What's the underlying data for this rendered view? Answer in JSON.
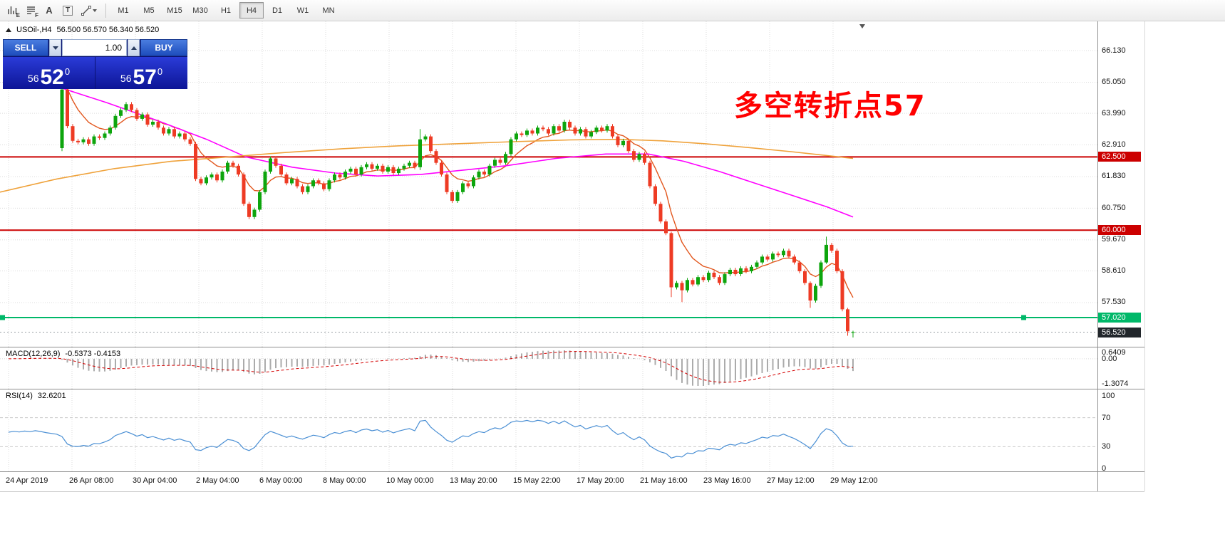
{
  "toolbar": {
    "icons": [
      {
        "name": "bar-chart-e-icon",
        "label": "E"
      },
      {
        "name": "line-list-f-icon",
        "label": "F"
      },
      {
        "name": "text-label-icon",
        "label": "A"
      },
      {
        "name": "text-box-icon",
        "label": "T"
      },
      {
        "name": "drawing-tools-icon",
        "label": ""
      }
    ],
    "timeframes": [
      "M1",
      "M5",
      "M15",
      "M30",
      "H1",
      "H4",
      "D1",
      "W1",
      "MN"
    ],
    "active_timeframe": "H4"
  },
  "chart_header": {
    "symbol": "USOil-,H4",
    "ohlc": "56.500 56.570 56.340 56.520"
  },
  "trade_panel": {
    "sell_label": "SELL",
    "buy_label": "BUY",
    "volume": "1.00",
    "sell_price": {
      "small": "56",
      "big": "52",
      "sup": "0"
    },
    "buy_price": {
      "small": "56",
      "big": "57",
      "sup": "0"
    }
  },
  "annotation": {
    "text": "多空转折点57",
    "color": "#FF0000"
  },
  "price_axis": {
    "labels": [
      {
        "text": "66.130",
        "price": 66.13
      },
      {
        "text": "65.050",
        "price": 65.05
      },
      {
        "text": "63.990",
        "price": 63.99
      },
      {
        "text": "62.910",
        "price": 62.91
      },
      {
        "text": "61.830",
        "price": 61.83
      },
      {
        "text": "60.750",
        "price": 60.75
      },
      {
        "text": "59.670",
        "price": 59.67
      },
      {
        "text": "58.610",
        "price": 58.61
      },
      {
        "text": "57.530",
        "price": 57.53
      }
    ],
    "tags": [
      {
        "text": "62.500",
        "price": 62.5,
        "bg": "#CC0000"
      },
      {
        "text": "60.000",
        "price": 60.0,
        "bg": "#CC0000"
      },
      {
        "text": "57.020",
        "price": 57.02,
        "bg": "#00B869"
      },
      {
        "text": "56.520",
        "price": 56.52,
        "bg": "#21262B"
      }
    ]
  },
  "time_axis": {
    "labels": [
      "24 Apr 2019",
      "26 Apr 08:00",
      "30 Apr 04:00",
      "2 May 04:00",
      "6 May 00:00",
      "8 May 00:00",
      "10 May 00:00",
      "13 May 20:00",
      "15 May 22:00",
      "17 May 20:00",
      "21 May 16:00",
      "23 May 16:00",
      "27 May 12:00",
      "29 May 12:00"
    ]
  },
  "indicators": {
    "macd": {
      "name": "MACD(12,26,9)",
      "values": "-0.5373 -0.4153",
      "scale_top": "0.6409",
      "scale_zero": "0.00",
      "scale_bottom": "-1.3074"
    },
    "rsi": {
      "name": "RSI(14)",
      "value": "32.6201",
      "scale": [
        "100",
        "70",
        "30",
        "0"
      ],
      "levels": [
        70,
        30
      ]
    }
  },
  "chart_data": {
    "type": "candlestick",
    "symbol": "USOil",
    "timeframe": "H4",
    "candle_up_color": "#0DA50D",
    "candle_down_color": "#EE3B24",
    "closes": [
      65.3,
      65.45,
      65.35,
      65.5,
      65.4,
      65.55,
      65.45,
      65.3,
      65.2,
      65.1,
      64.8,
      63.55,
      63.05,
      63.0,
      63.1,
      62.95,
      63.2,
      63.15,
      63.3,
      63.5,
      63.9,
      64.1,
      64.3,
      64.1,
      63.8,
      63.95,
      63.6,
      63.7,
      63.5,
      63.3,
      63.45,
      63.2,
      63.3,
      63.1,
      62.95,
      61.75,
      61.6,
      61.8,
      61.9,
      61.7,
      62.0,
      62.3,
      62.2,
      61.9,
      60.9,
      60.45,
      60.7,
      61.3,
      62.0,
      62.45,
      62.2,
      61.9,
      61.6,
      61.75,
      61.5,
      61.3,
      61.5,
      61.7,
      61.6,
      61.4,
      61.7,
      61.9,
      61.8,
      62.0,
      62.1,
      61.9,
      62.15,
      62.25,
      62.1,
      62.2,
      62.0,
      62.15,
      61.95,
      62.1,
      62.2,
      62.3,
      62.15,
      63.1,
      63.2,
      62.7,
      62.3,
      61.9,
      61.3,
      61.0,
      61.3,
      61.6,
      61.5,
      61.8,
      62.0,
      61.9,
      62.2,
      62.4,
      62.3,
      62.6,
      63.1,
      63.3,
      63.25,
      63.4,
      63.3,
      63.5,
      63.45,
      63.3,
      63.55,
      63.4,
      63.7,
      63.5,
      63.3,
      63.45,
      63.2,
      63.35,
      63.5,
      63.4,
      63.55,
      63.2,
      62.9,
      63.05,
      62.7,
      62.4,
      62.6,
      62.3,
      61.5,
      60.9,
      60.3,
      59.9,
      58.05,
      58.2,
      57.95,
      58.3,
      58.15,
      58.4,
      58.3,
      58.55,
      58.4,
      58.2,
      58.5,
      58.65,
      58.5,
      58.7,
      58.6,
      58.75,
      58.9,
      59.1,
      59.0,
      59.2,
      59.15,
      59.3,
      59.1,
      58.9,
      58.6,
      58.2,
      57.6,
      58.1,
      58.9,
      59.5,
      59.3,
      58.6,
      57.3,
      56.55,
      56.52
    ],
    "overrides": {
      "10": [
        62.8,
        64.92,
        62.7,
        64.8
      ],
      "77": [
        62.15,
        63.45,
        62.05,
        63.1
      ],
      "124": [
        59.9,
        59.95,
        57.72,
        58.05
      ],
      "126": [
        58.2,
        58.27,
        57.55,
        57.95
      ],
      "150": [
        58.2,
        58.25,
        57.35,
        57.6
      ],
      "153": [
        58.9,
        59.78,
        58.85,
        59.5
      ],
      "157": [
        57.3,
        57.35,
        56.4,
        56.55
      ],
      "158": [
        56.5,
        56.57,
        56.34,
        56.52
      ]
    },
    "hlines": [
      {
        "price": 62.5,
        "color": "#CC0000",
        "width": 2
      },
      {
        "price": 60.0,
        "color": "#CC0000",
        "width": 2
      },
      {
        "price": 57.02,
        "color": "#00B869",
        "width": 2,
        "markers": true
      }
    ],
    "bid_line": {
      "price": 56.52,
      "color": "#9AA0A6"
    },
    "ma_lines": [
      {
        "name": "ma-fast-line",
        "type": "ema",
        "period": 8,
        "color": "#E2571E"
      },
      {
        "name": "ma-magenta-line",
        "color": "#FF00FF",
        "points": [
          [
            12,
            65.3
          ],
          [
            80,
            64.9
          ],
          [
            150,
            64.35
          ],
          [
            220,
            63.75
          ],
          [
            290,
            63.1
          ],
          [
            345,
            62.5
          ],
          [
            410,
            62.15
          ],
          [
            470,
            61.95
          ],
          [
            530,
            61.85
          ],
          [
            590,
            61.9
          ],
          [
            650,
            62.05
          ],
          [
            710,
            62.2
          ],
          [
            780,
            62.45
          ],
          [
            850,
            62.6
          ],
          [
            910,
            62.6
          ],
          [
            960,
            62.35
          ],
          [
            1010,
            62.0
          ],
          [
            1060,
            61.6
          ],
          [
            1110,
            61.2
          ],
          [
            1160,
            60.8
          ],
          [
            1197,
            60.45
          ]
        ]
      },
      {
        "name": "ma-gold-line",
        "color": "#EFA23B",
        "points": [
          [
            0,
            61.3
          ],
          [
            80,
            61.75
          ],
          [
            160,
            62.1
          ],
          [
            240,
            62.35
          ],
          [
            320,
            62.5
          ],
          [
            400,
            62.65
          ],
          [
            480,
            62.78
          ],
          [
            560,
            62.88
          ],
          [
            640,
            62.95
          ],
          [
            720,
            63.02
          ],
          [
            800,
            63.08
          ],
          [
            870,
            63.1
          ],
          [
            930,
            63.05
          ],
          [
            990,
            62.95
          ],
          [
            1050,
            62.82
          ],
          [
            1110,
            62.68
          ],
          [
            1160,
            62.55
          ],
          [
            1197,
            62.45
          ]
        ]
      }
    ],
    "macd_colors": {
      "histogram": "#ABABAB",
      "signal": "#D40000"
    },
    "rsi_color": "#4A8FD4"
  }
}
